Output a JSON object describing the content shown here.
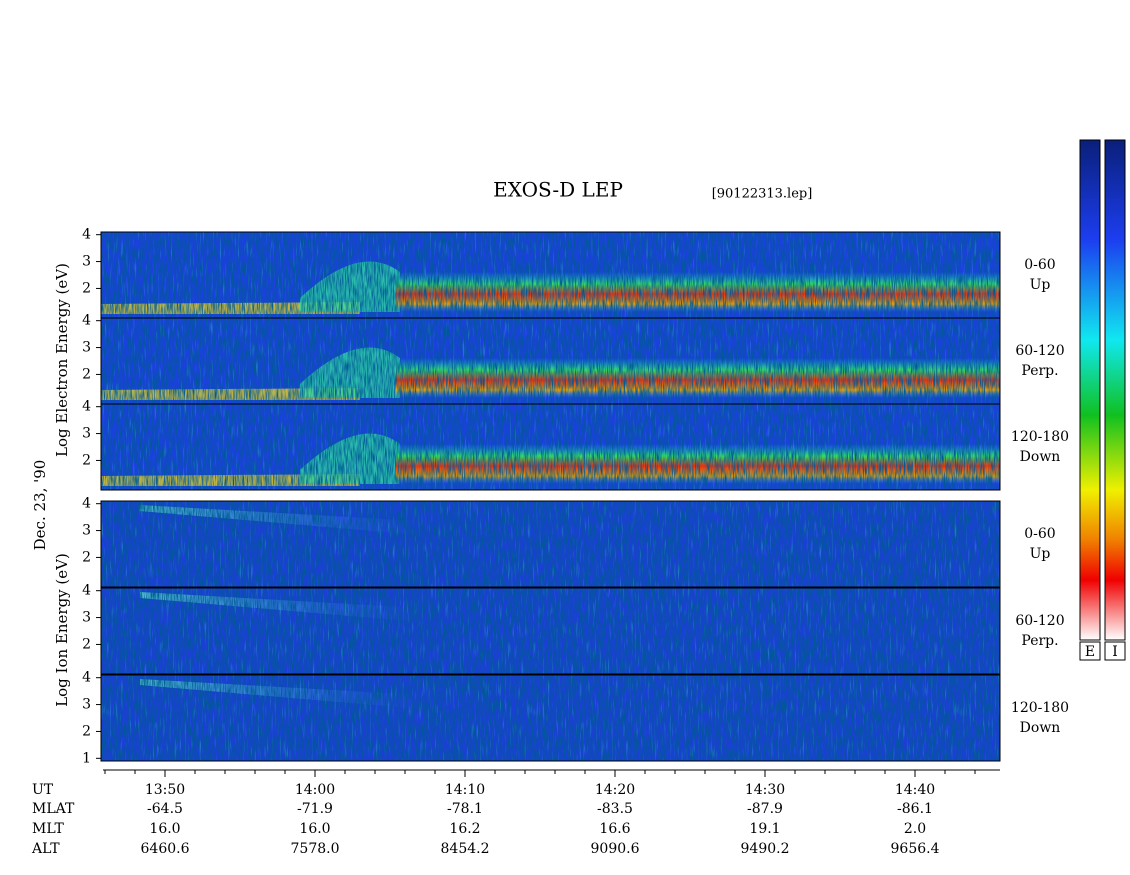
{
  "title": "EXOS-D LEP",
  "file": "[90122313.lep]",
  "species": [
    "Log  Electron  Energy  (eV)",
    "Log  Ion  Energy  (eV)"
  ],
  "date": "Dec. 23, '90",
  "ylim": [
    0.9,
    4.1
  ],
  "panels": [
    {
      "pitch": [
        "0-60",
        "Up"
      ],
      "yticks": [
        2,
        3,
        4
      ]
    },
    {
      "pitch": [
        "60-120",
        "Perp."
      ],
      "yticks": [
        2,
        3,
        4
      ]
    },
    {
      "pitch": [
        "120-180",
        "Down"
      ],
      "yticks": [
        2,
        3,
        4
      ]
    },
    {
      "pitch": [
        "0-60",
        "Up"
      ],
      "yticks": [
        2,
        3,
        4
      ]
    },
    {
      "pitch": [
        "60-120",
        "Perp."
      ],
      "yticks": [
        2,
        3,
        4
      ]
    },
    {
      "pitch": [
        "120-180",
        "Down"
      ],
      "yticks": [
        1,
        2,
        3,
        4
      ]
    }
  ],
  "xaxis": {
    "rows": [
      "UT",
      "MLAT",
      "MLT",
      "ALT"
    ],
    "columns": [
      [
        "13:50",
        "-64.5",
        "16.0",
        "6460.6"
      ],
      [
        "14:00",
        "-71.9",
        "16.0",
        "7578.0"
      ],
      [
        "14:10",
        "-78.1",
        "16.2",
        "8454.2"
      ],
      [
        "14:20",
        "-83.5",
        "16.6",
        "9090.6"
      ],
      [
        "14:30",
        "-87.9",
        "19.1",
        "9490.2"
      ],
      [
        "14:40",
        "-86.1",
        "2.0",
        "9656.4"
      ]
    ]
  },
  "colorbars": [
    "E",
    "I"
  ]
}
